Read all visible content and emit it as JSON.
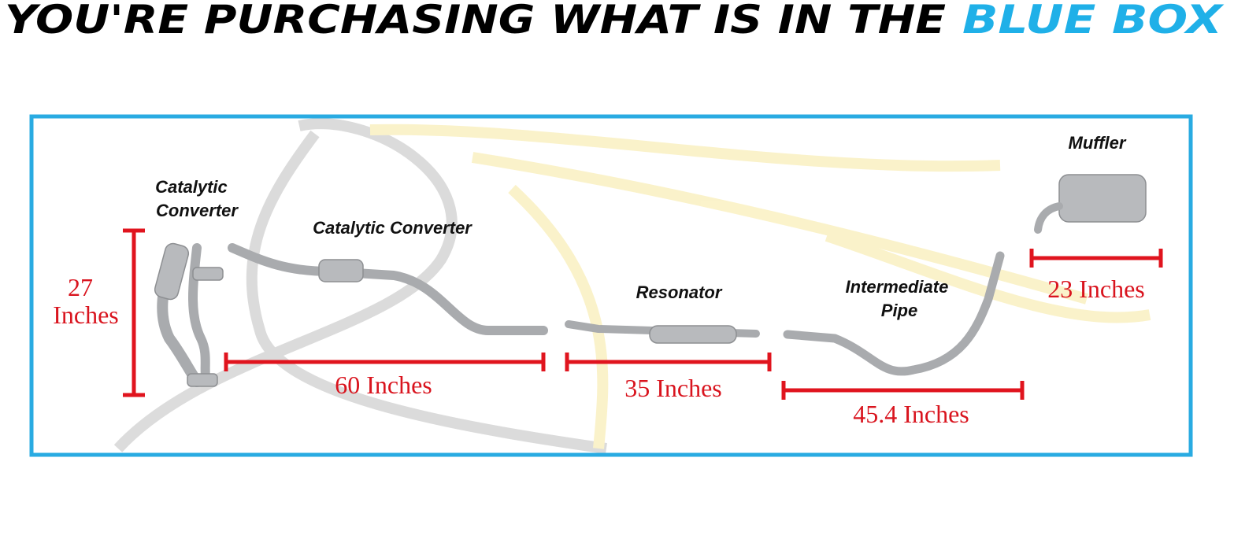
{
  "header": {
    "title": "YOU'RE PURCHASING WHAT IS IN THE",
    "highlight": "BLUE BOX"
  },
  "parts": [
    {
      "lines": [
        "Catalytic",
        "Converter"
      ]
    },
    {
      "lines": [
        "Catalytic Converter"
      ]
    },
    {
      "lines": [
        "Resonator"
      ]
    },
    {
      "lines": [
        "Intermediate",
        "Pipe"
      ]
    },
    {
      "lines": [
        "Muffler"
      ]
    }
  ],
  "dimensions": [
    {
      "lines": [
        "27",
        "Inches"
      ]
    },
    {
      "lines": [
        "60 Inches"
      ]
    },
    {
      "lines": [
        "35 Inches"
      ]
    },
    {
      "lines": [
        "45.4 Inches"
      ]
    },
    {
      "lines": [
        "23 Inches"
      ]
    }
  ]
}
